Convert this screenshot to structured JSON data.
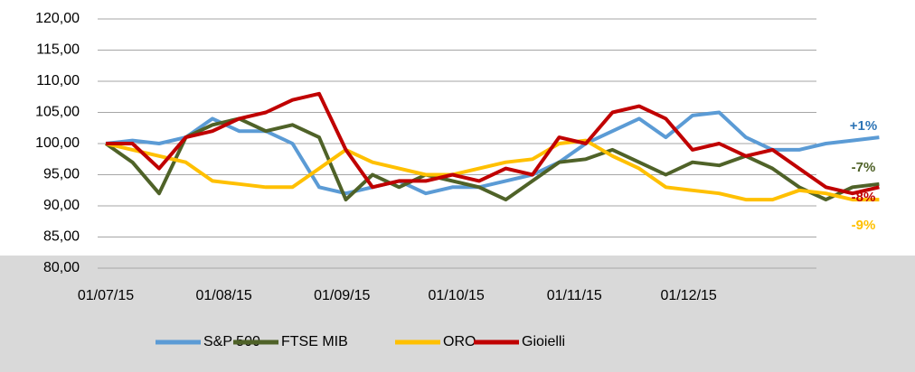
{
  "chart_data": {
    "type": "line",
    "x": [
      "2015-07-01",
      "2015-07-08",
      "2015-07-15",
      "2015-07-22",
      "2015-07-29",
      "2015-08-05",
      "2015-08-12",
      "2015-08-19",
      "2015-08-26",
      "2015-09-02",
      "2015-09-09",
      "2015-09-16",
      "2015-09-23",
      "2015-09-30",
      "2015-10-07",
      "2015-10-14",
      "2015-10-21",
      "2015-10-28",
      "2015-11-04",
      "2015-11-11",
      "2015-11-18",
      "2015-11-25",
      "2015-12-02",
      "2015-12-09",
      "2015-12-16",
      "2015-12-23",
      "2015-12-30",
      "2016-01-06",
      "2016-01-13",
      "2016-01-20"
    ],
    "series": [
      {
        "name": "S&P 500",
        "color": "#5b9bd5",
        "values": [
          100,
          100.5,
          100,
          101,
          104,
          102,
          102,
          100,
          93,
          92,
          93,
          94,
          92,
          93,
          93,
          94,
          95,
          97,
          100,
          102,
          104,
          101,
          104.5,
          105,
          101,
          99,
          99,
          100,
          100.5,
          101
        ]
      },
      {
        "name": "FTSE MIB",
        "color": "#4f6228",
        "values": [
          100,
          97,
          92,
          101,
          103,
          104,
          102,
          103,
          101,
          91,
          95,
          93,
          95,
          94,
          93,
          91,
          94,
          97,
          97.5,
          99,
          97,
          95,
          97,
          96.5,
          98,
          96,
          93,
          91,
          93,
          93.5
        ]
      },
      {
        "name": "ORO",
        "color": "#ffc000",
        "values": [
          100,
          99,
          98,
          97,
          94,
          93.5,
          93,
          93,
          96,
          99,
          97,
          96,
          95,
          95,
          96,
          97,
          97.5,
          100,
          100.5,
          98,
          96,
          93,
          92.5,
          92,
          91,
          91,
          92.5,
          92,
          91,
          91
        ]
      },
      {
        "name": "Gioielli",
        "color": "#c00000",
        "values": [
          100,
          100,
          96,
          101,
          102,
          104,
          105,
          107,
          108,
          99,
          93,
          94,
          94,
          95,
          94,
          96,
          95,
          101,
          100,
          105,
          106,
          104,
          99,
          100,
          98,
          99,
          96,
          93,
          92,
          93
        ]
      }
    ],
    "annotations": [
      {
        "text": "+1%",
        "color": "#2e75b6"
      },
      {
        "text": "-7%",
        "color": "#4f6228"
      },
      {
        "text": "-8%",
        "color": "#c00000"
      },
      {
        "text": "-9%",
        "color": "#ffc000"
      }
    ],
    "xlim": [
      "2015-07-01",
      "2016-01-23"
    ],
    "xticks": [
      {
        "value": "2015-07-01",
        "label": "01/07/15"
      },
      {
        "value": "2015-08-01",
        "label": "01/08/15"
      },
      {
        "value": "2015-09-01",
        "label": "01/09/15"
      },
      {
        "value": "2015-10-01",
        "label": "01/10/15"
      },
      {
        "value": "2015-11-01",
        "label": "01/11/15"
      },
      {
        "value": "2015-12-01",
        "label": "01/12/15"
      }
    ],
    "ylim": [
      80,
      120
    ],
    "yticks": [
      {
        "value": 80,
        "label": "80,00"
      },
      {
        "value": 85,
        "label": "85,00"
      },
      {
        "value": 90,
        "label": "90,00"
      },
      {
        "value": 95,
        "label": "95,00"
      },
      {
        "value": 100,
        "label": "100,00"
      },
      {
        "value": 105,
        "label": "105,00"
      },
      {
        "value": 110,
        "label": "110,00"
      },
      {
        "value": 115,
        "label": "115,00"
      },
      {
        "value": 120,
        "label": "120,00"
      }
    ],
    "grid": true,
    "legend": "bottom"
  }
}
